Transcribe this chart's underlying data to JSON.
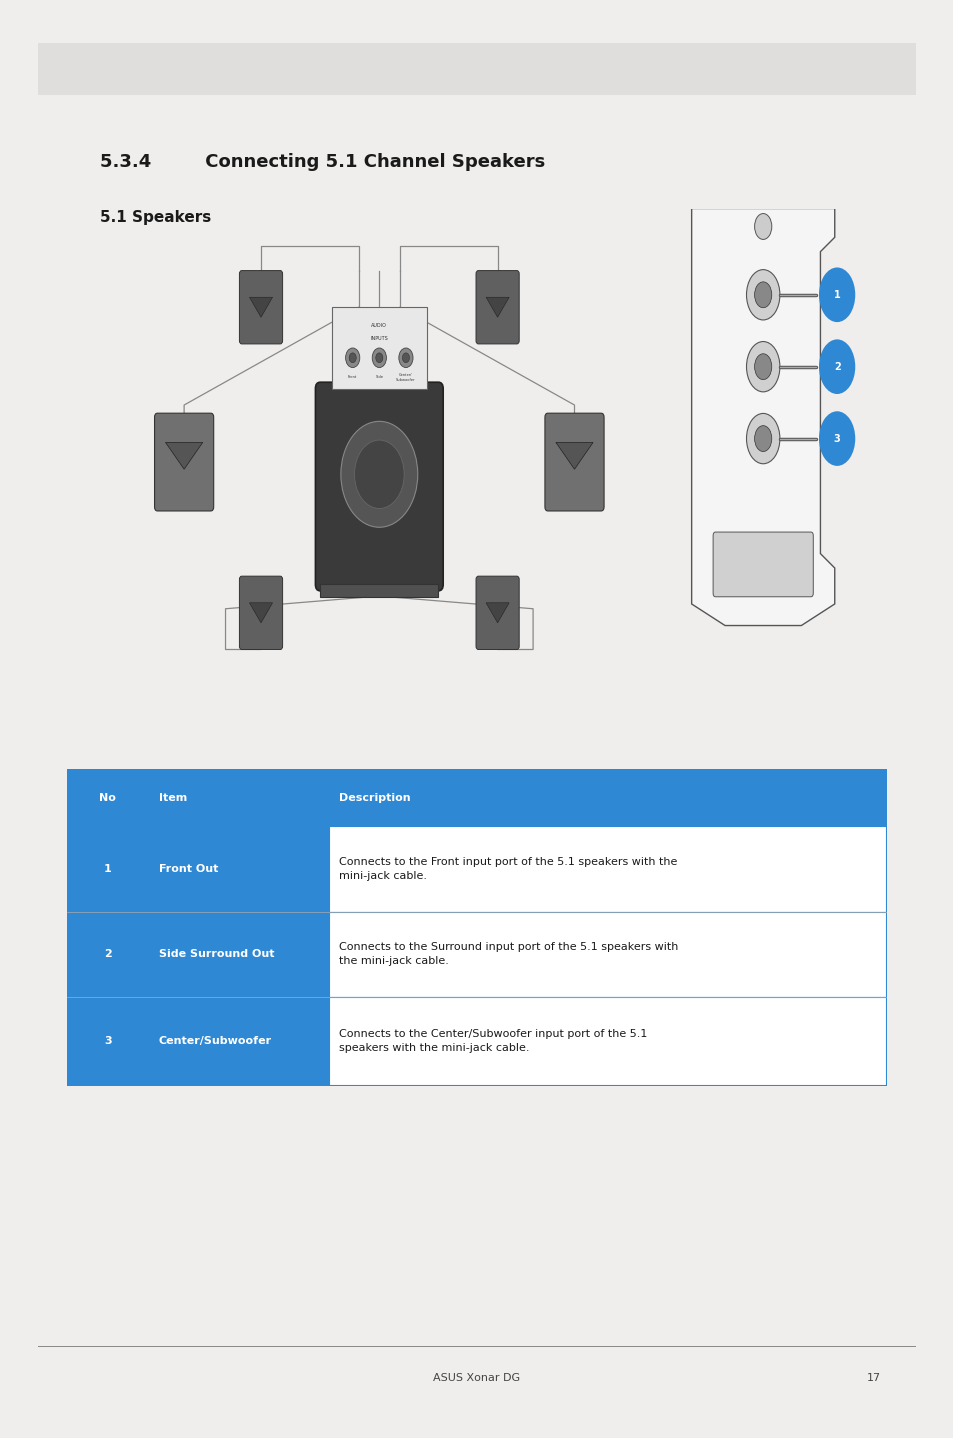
{
  "page_bg": "#f0eeec",
  "content_bg": "#ffffff",
  "title": "5.3.4   Connecting 5.1 Channel Speakers",
  "subtitle": "5.1 Speakers",
  "header_bg": "#2e88d4",
  "header_text_color": "#ffffff",
  "row_blue_bg": "#2e88d4",
  "row_white_bg": "#ffffff",
  "table_border": "#2e88d4",
  "row_divider": "#aaaaaa",
  "table_rows": [
    {
      "no": "No",
      "item": "Item",
      "desc": "Description",
      "is_header": true
    },
    {
      "no": "1",
      "item": "Front Out",
      "desc": "Connects to the Front input port of the 5.1 speakers with the\nmini-jack cable.",
      "is_header": false
    },
    {
      "no": "2",
      "item": "Side Surround Out",
      "desc": "Connects to the Surround input port of the 5.1 speakers with\nthe mini-jack cable.",
      "is_header": false
    },
    {
      "no": "3",
      "item": "Center/Subwoofer",
      "desc": "Connects to the Center/Subwoofer input port of the 5.1\nspeakers with the mini-jack cable.",
      "is_header": false
    }
  ],
  "footer_text": "ASUS Xonar DG",
  "footer_page": "17",
  "blue_circle_color": "#2e88d4",
  "circle_labels": [
    "1",
    "2",
    "3"
  ],
  "top_bar_color": "#e0dedd",
  "text_dark": "#1a1a1a",
  "footer_line_color": "#888888",
  "footer_text_color": "#444444"
}
